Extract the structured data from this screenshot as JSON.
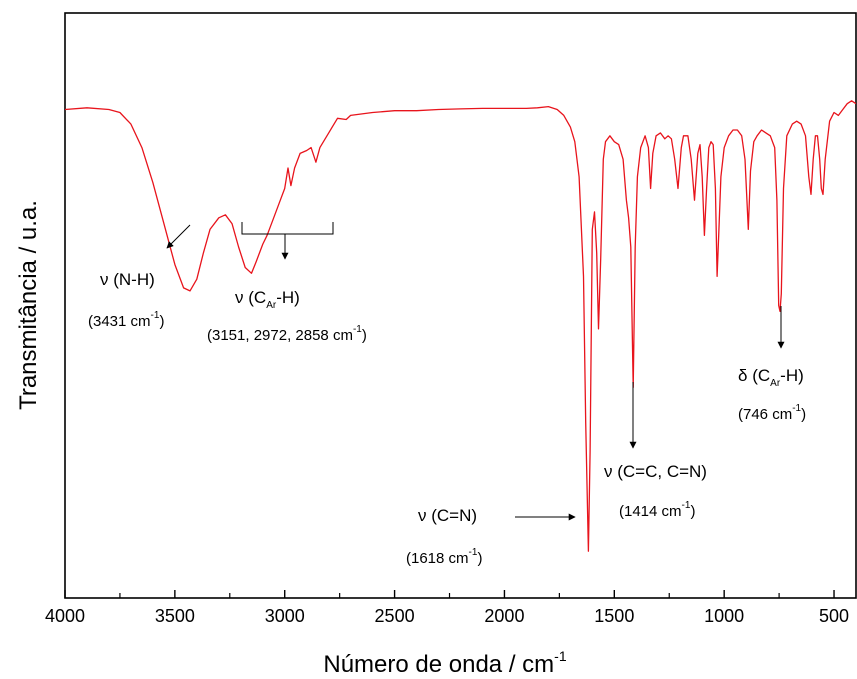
{
  "chart_data": {
    "type": "line",
    "title": "",
    "xlabel": "Número de onda / cm",
    "xlabel_sup": "-1",
    "ylabel": "Transmitância / u.a.",
    "xlim": [
      4000,
      400
    ],
    "ylim": [
      0,
      1
    ],
    "x_reversed": true,
    "x_ticks": [
      4000,
      3500,
      3000,
      2500,
      2000,
      1500,
      1000,
      500
    ],
    "y_ticks_labeled": false,
    "grid": false,
    "legend": "none",
    "line_color": "#e8141c",
    "series": [
      {
        "points": [
          [
            4000,
            0.835
          ],
          [
            3900,
            0.838
          ],
          [
            3800,
            0.835
          ],
          [
            3750,
            0.83
          ],
          [
            3700,
            0.81
          ],
          [
            3650,
            0.77
          ],
          [
            3600,
            0.71
          ],
          [
            3550,
            0.64
          ],
          [
            3500,
            0.57
          ],
          [
            3460,
            0.53
          ],
          [
            3431,
            0.525
          ],
          [
            3400,
            0.545
          ],
          [
            3370,
            0.59
          ],
          [
            3340,
            0.63
          ],
          [
            3300,
            0.65
          ],
          [
            3270,
            0.655
          ],
          [
            3240,
            0.64
          ],
          [
            3210,
            0.6
          ],
          [
            3180,
            0.565
          ],
          [
            3151,
            0.555
          ],
          [
            3130,
            0.575
          ],
          [
            3100,
            0.605
          ],
          [
            3080,
            0.62
          ],
          [
            3050,
            0.65
          ],
          [
            3020,
            0.68
          ],
          [
            3000,
            0.7
          ],
          [
            2985,
            0.735
          ],
          [
            2972,
            0.705
          ],
          [
            2955,
            0.735
          ],
          [
            2930,
            0.76
          ],
          [
            2900,
            0.765
          ],
          [
            2880,
            0.77
          ],
          [
            2858,
            0.745
          ],
          [
            2840,
            0.77
          ],
          [
            2800,
            0.795
          ],
          [
            2760,
            0.82
          ],
          [
            2720,
            0.818
          ],
          [
            2700,
            0.825
          ],
          [
            2600,
            0.83
          ],
          [
            2500,
            0.833
          ],
          [
            2400,
            0.833
          ],
          [
            2300,
            0.835
          ],
          [
            2200,
            0.836
          ],
          [
            2100,
            0.837
          ],
          [
            2000,
            0.837
          ],
          [
            1900,
            0.837
          ],
          [
            1850,
            0.838
          ],
          [
            1800,
            0.84
          ],
          [
            1760,
            0.835
          ],
          [
            1730,
            0.825
          ],
          [
            1700,
            0.805
          ],
          [
            1680,
            0.78
          ],
          [
            1660,
            0.72
          ],
          [
            1640,
            0.55
          ],
          [
            1630,
            0.3
          ],
          [
            1618,
            0.08
          ],
          [
            1610,
            0.25
          ],
          [
            1600,
            0.63
          ],
          [
            1590,
            0.66
          ],
          [
            1580,
            0.59
          ],
          [
            1572,
            0.46
          ],
          [
            1562,
            0.58
          ],
          [
            1550,
            0.75
          ],
          [
            1540,
            0.78
          ],
          [
            1520,
            0.79
          ],
          [
            1500,
            0.78
          ],
          [
            1480,
            0.775
          ],
          [
            1460,
            0.75
          ],
          [
            1445,
            0.68
          ],
          [
            1435,
            0.65
          ],
          [
            1425,
            0.6
          ],
          [
            1414,
            0.36
          ],
          [
            1405,
            0.6
          ],
          [
            1395,
            0.72
          ],
          [
            1380,
            0.77
          ],
          [
            1360,
            0.79
          ],
          [
            1345,
            0.77
          ],
          [
            1335,
            0.7
          ],
          [
            1325,
            0.76
          ],
          [
            1310,
            0.79
          ],
          [
            1290,
            0.795
          ],
          [
            1270,
            0.785
          ],
          [
            1255,
            0.79
          ],
          [
            1240,
            0.785
          ],
          [
            1225,
            0.75
          ],
          [
            1210,
            0.7
          ],
          [
            1195,
            0.77
          ],
          [
            1185,
            0.79
          ],
          [
            1165,
            0.79
          ],
          [
            1150,
            0.75
          ],
          [
            1135,
            0.68
          ],
          [
            1120,
            0.76
          ],
          [
            1110,
            0.775
          ],
          [
            1100,
            0.72
          ],
          [
            1090,
            0.62
          ],
          [
            1080,
            0.7
          ],
          [
            1070,
            0.77
          ],
          [
            1060,
            0.78
          ],
          [
            1050,
            0.775
          ],
          [
            1040,
            0.7
          ],
          [
            1032,
            0.55
          ],
          [
            1025,
            0.62
          ],
          [
            1015,
            0.72
          ],
          [
            1000,
            0.77
          ],
          [
            980,
            0.79
          ],
          [
            960,
            0.8
          ],
          [
            940,
            0.8
          ],
          [
            920,
            0.79
          ],
          [
            905,
            0.75
          ],
          [
            890,
            0.63
          ],
          [
            880,
            0.73
          ],
          [
            865,
            0.78
          ],
          [
            850,
            0.79
          ],
          [
            830,
            0.8
          ],
          [
            810,
            0.795
          ],
          [
            790,
            0.79
          ],
          [
            770,
            0.77
          ],
          [
            760,
            0.68
          ],
          [
            752,
            0.5
          ],
          [
            746,
            0.49
          ],
          [
            740,
            0.52
          ],
          [
            730,
            0.7
          ],
          [
            715,
            0.79
          ],
          [
            690,
            0.81
          ],
          [
            670,
            0.815
          ],
          [
            650,
            0.81
          ],
          [
            630,
            0.79
          ],
          [
            615,
            0.72
          ],
          [
            605,
            0.69
          ],
          [
            595,
            0.75
          ],
          [
            585,
            0.79
          ],
          [
            575,
            0.79
          ],
          [
            565,
            0.75
          ],
          [
            558,
            0.7
          ],
          [
            550,
            0.69
          ],
          [
            540,
            0.75
          ],
          [
            520,
            0.815
          ],
          [
            500,
            0.83
          ],
          [
            480,
            0.825
          ],
          [
            460,
            0.835
          ],
          [
            440,
            0.845
          ],
          [
            420,
            0.85
          ],
          [
            400,
            0.845
          ]
        ]
      }
    ],
    "annotations": [
      {
        "mode": "ν",
        "group": "(N-H)",
        "value": "(3431 cm",
        "value_sup": "-1",
        "value_end": ")"
      },
      {
        "mode": "ν",
        "group_pre": "(C",
        "group_sub": "Ar",
        "group_post": "-H)",
        "value": "(3151, 2972, 2858 cm",
        "value_sup": "-1",
        "value_end": ")"
      },
      {
        "mode": "ν",
        "group": "(C=N)",
        "value": "(1618 cm",
        "value_sup": "-1",
        "value_end": ")"
      },
      {
        "mode": "ν",
        "group": "(C=C, C=N)",
        "value": "(1414 cm",
        "value_sup": "-1",
        "value_end": ")"
      },
      {
        "mode": "δ",
        "group_pre": "(C",
        "group_sub": "Ar",
        "group_post": "-H)",
        "value": "(746 cm",
        "value_sup": "-1",
        "value_end": ")"
      }
    ]
  }
}
